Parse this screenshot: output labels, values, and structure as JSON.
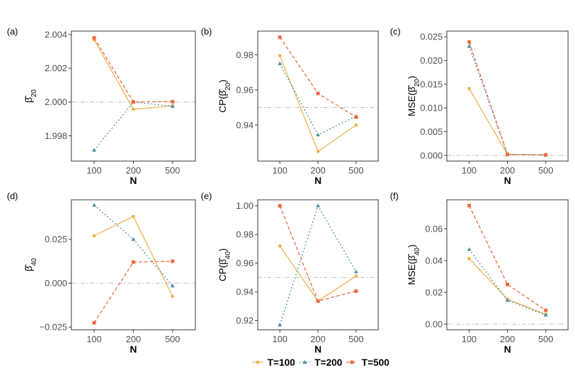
{
  "legend": {
    "entries": [
      {
        "label": "T=100",
        "color": "#EFB14E",
        "marker": "circle",
        "dash": "solid"
      },
      {
        "label": "T=200",
        "color": "#4A8FA6",
        "marker": "triangle",
        "dash": "dotted"
      },
      {
        "label": "T=500",
        "color": "#EA6A40",
        "marker": "square",
        "dash": "dashed"
      }
    ]
  },
  "chart_data": [
    {
      "type": "line",
      "panel": "(a)",
      "ylabel_text": "β",
      "ylabel_sub": "20",
      "ylabel_prefix": "",
      "xlabel": "N",
      "categories": [
        "100",
        "200",
        "500"
      ],
      "ylim": [
        1.9965,
        2.0042
      ],
      "yticks": [
        1.998,
        2.0,
        2.002,
        2.004
      ],
      "yticklabels": [
        "1.998",
        "2.000",
        "2.002",
        "2.004"
      ],
      "refline": 2.0,
      "series": [
        {
          "name": "T=100",
          "values": [
            2.00368,
            1.99957,
            1.99977
          ]
        },
        {
          "name": "T=200",
          "values": [
            1.99715,
            2.0,
            1.99975
          ]
        },
        {
          "name": "T=500",
          "values": [
            2.0038,
            2.0,
            2.00002
          ]
        }
      ]
    },
    {
      "type": "line",
      "panel": "(b)",
      "ylabel_text": "β",
      "ylabel_sub": "20",
      "ylabel_prefix": "CP",
      "xlabel": "N",
      "categories": [
        "100",
        "200",
        "500"
      ],
      "ylim": [
        0.9195,
        0.9935
      ],
      "yticks": [
        0.94,
        0.96,
        0.98
      ],
      "yticklabels": [
        "0.94",
        "0.96",
        "0.98"
      ],
      "refline": 0.95,
      "series": [
        {
          "name": "T=100",
          "values": [
            0.9795,
            0.925,
            0.94
          ]
        },
        {
          "name": "T=200",
          "values": [
            0.975,
            0.9345,
            0.945
          ]
        },
        {
          "name": "T=500",
          "values": [
            0.99,
            0.958,
            0.9445
          ]
        }
      ]
    },
    {
      "type": "line",
      "panel": "(c)",
      "ylabel_text": "β",
      "ylabel_sub": "20",
      "ylabel_prefix": "MSE",
      "xlabel": "N",
      "categories": [
        "100",
        "200",
        "500"
      ],
      "ylim": [
        -0.0012,
        0.0262
      ],
      "yticks": [
        0.0,
        0.005,
        0.01,
        0.015,
        0.02,
        0.025
      ],
      "yticklabels": [
        "0.000",
        "0.005",
        "0.010",
        "0.015",
        "0.020",
        "0.025"
      ],
      "refline": 0.0,
      "series": [
        {
          "name": "T=100",
          "values": [
            0.0141,
            0.0002,
            0.0001
          ]
        },
        {
          "name": "T=200",
          "values": [
            0.023,
            0.0002,
            0.0001
          ]
        },
        {
          "name": "T=500",
          "values": [
            0.0239,
            0.0002,
            0.0001
          ]
        }
      ]
    },
    {
      "type": "line",
      "panel": "(d)",
      "ylabel_text": "β",
      "ylabel_sub": "40",
      "ylabel_prefix": "",
      "xlabel": "N",
      "categories": [
        "100",
        "200",
        "500"
      ],
      "ylim": [
        -0.0265,
        0.0475
      ],
      "yticks": [
        -0.025,
        0.0,
        0.025
      ],
      "yticklabels": [
        "−0.025",
        "0.000",
        "0.025"
      ],
      "refline": 0.0,
      "series": [
        {
          "name": "T=100",
          "values": [
            0.027,
            0.038,
            -0.0075
          ]
        },
        {
          "name": "T=200",
          "values": [
            0.0445,
            0.025,
            -0.0015
          ]
        },
        {
          "name": "T=500",
          "values": [
            -0.0225,
            0.012,
            0.0125
          ]
        }
      ]
    },
    {
      "type": "line",
      "panel": "(e)",
      "ylabel_text": "β",
      "ylabel_sub": "40",
      "ylabel_prefix": "CP",
      "xlabel": "N",
      "categories": [
        "100",
        "200",
        "500"
      ],
      "ylim": [
        0.9135,
        1.0042
      ],
      "yticks": [
        0.92,
        0.94,
        0.96,
        0.98,
        1.0
      ],
      "yticklabels": [
        "0.92",
        "0.94",
        "0.96",
        "0.98",
        "1.00"
      ],
      "refline": 0.95,
      "series": [
        {
          "name": "T=100",
          "values": [
            0.972,
            0.9335,
            0.951
          ]
        },
        {
          "name": "T=200",
          "values": [
            0.917,
            1.0,
            0.954
          ]
        },
        {
          "name": "T=500",
          "values": [
            1.0,
            0.9335,
            0.9405
          ]
        }
      ]
    },
    {
      "type": "line",
      "panel": "(f)",
      "ylabel_text": "β",
      "ylabel_sub": "40",
      "ylabel_prefix": "MSE",
      "xlabel": "N",
      "categories": [
        "100",
        "200",
        "500"
      ],
      "ylim": [
        -0.0035,
        0.0782
      ],
      "yticks": [
        0.0,
        0.02,
        0.04,
        0.06
      ],
      "yticklabels": [
        "0.00",
        "0.02",
        "0.04",
        "0.06"
      ],
      "refline": 0.0,
      "series": [
        {
          "name": "T=100",
          "values": [
            0.0413,
            0.0157,
            0.0062
          ]
        },
        {
          "name": "T=200",
          "values": [
            0.047,
            0.015,
            0.0058
          ]
        },
        {
          "name": "T=500",
          "values": [
            0.0746,
            0.025,
            0.0087
          ]
        }
      ]
    }
  ]
}
